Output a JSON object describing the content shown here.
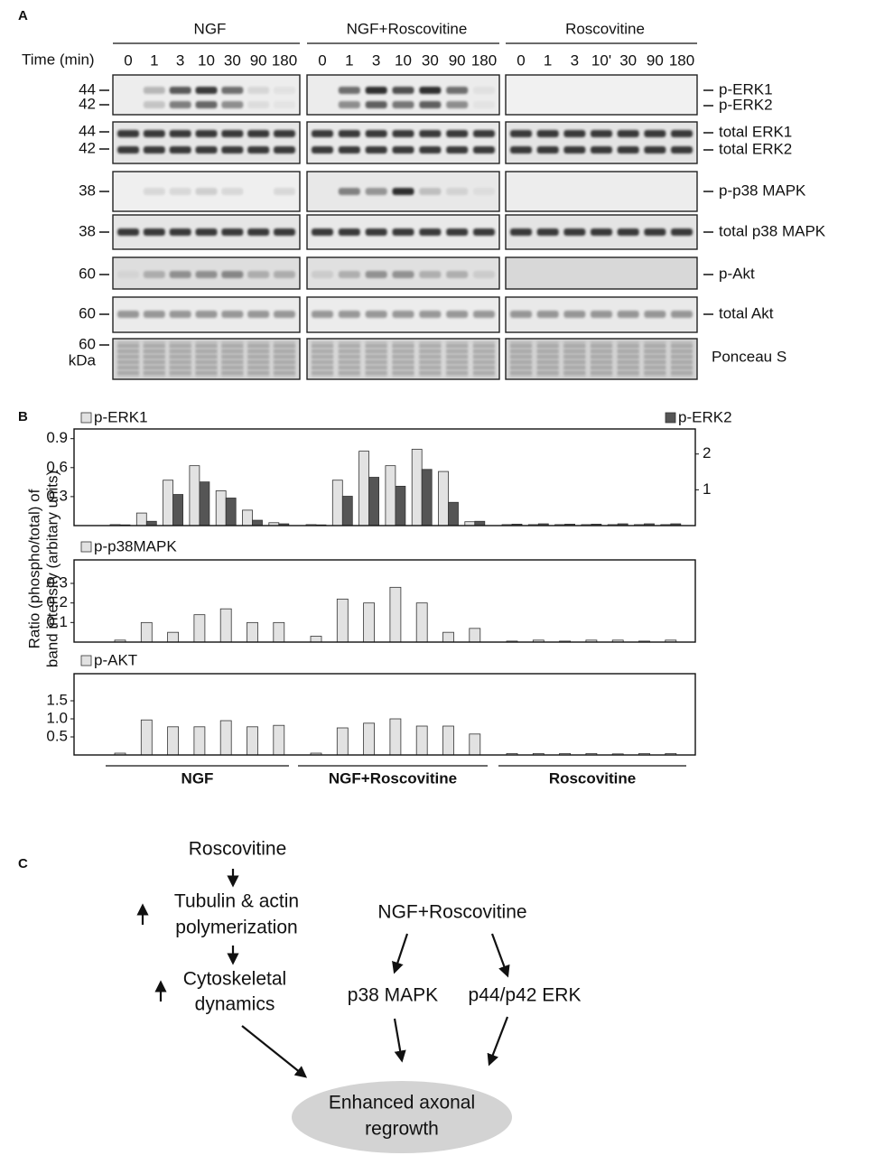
{
  "panel_a": {
    "label": "A",
    "time_label": "Time (min)",
    "groups": [
      {
        "name": "NGF",
        "times": [
          "0",
          "1",
          "3",
          "10",
          "30",
          "90",
          "180"
        ]
      },
      {
        "name": "NGF+Roscovitine",
        "times": [
          "0",
          "1",
          "3",
          "10",
          "30",
          "90",
          "180"
        ]
      },
      {
        "name": "Roscovitine",
        "times": [
          "0",
          "1",
          "3",
          "10'",
          "30",
          "90",
          "180"
        ]
      }
    ],
    "markers": [
      "44",
      "42",
      "44",
      "42",
      "38",
      "38",
      "60",
      "60",
      "60",
      "kDa"
    ],
    "proteins": [
      "p-ERK1",
      "p-ERK2",
      "total ERK1",
      "total ERK2",
      "p-p38 MAPK",
      "total p38 MAPK",
      "p-Akt",
      "total Akt",
      "Ponceau S"
    ]
  },
  "panel_b": {
    "label": "B",
    "y_label": [
      "Ratio (phospho/total) of",
      "band intensity (arbitary units)"
    ],
    "groups": [
      "NGF",
      "NGF+Roscovitine",
      "Roscovitine"
    ]
  },
  "chart_data": [
    {
      "type": "bar",
      "categories": [
        null,
        null,
        null,
        null,
        null,
        null,
        null,
        null,
        null,
        null,
        null,
        null,
        null,
        null,
        null,
        null,
        null,
        null,
        null,
        null,
        null
      ],
      "ylim": [
        0,
        1.0
      ],
      "yticks": [
        0.3,
        0.6,
        0.9
      ],
      "y2lim": [
        0,
        2.7
      ],
      "y2ticks": [
        1,
        2
      ],
      "series": [
        {
          "name": "p-ERK1",
          "color": "#e2e2e2",
          "values": [
            0.01,
            0.13,
            0.47,
            0.62,
            0.36,
            0.16,
            0.03,
            0.01,
            0.47,
            0.77,
            0.62,
            0.79,
            0.56,
            0.04,
            0.01,
            0.01,
            0.01,
            0.01,
            0.01,
            0.01,
            0.01
          ]
        },
        {
          "name": "p-ERK2",
          "color": "#555555",
          "axis": "y2",
          "values": [
            0.02,
            0.12,
            0.87,
            1.22,
            0.77,
            0.15,
            0.05,
            0.02,
            0.82,
            1.35,
            1.1,
            1.57,
            0.65,
            0.12,
            0.04,
            0.05,
            0.04,
            0.04,
            0.05,
            0.05,
            0.05
          ]
        }
      ]
    },
    {
      "type": "bar",
      "categories": [
        null,
        null,
        null,
        null,
        null,
        null,
        null,
        null,
        null,
        null,
        null,
        null,
        null,
        null,
        null,
        null,
        null,
        null,
        null,
        null,
        null
      ],
      "ylim": [
        0,
        0.42
      ],
      "yticks": [
        0.1,
        0.2,
        0.3
      ],
      "series": [
        {
          "name": "p-p38MAPK",
          "color": "#e2e2e2",
          "values": [
            0.01,
            0.1,
            0.05,
            0.14,
            0.17,
            0.1,
            0.1,
            0.03,
            0.22,
            0.2,
            0.28,
            0.2,
            0.05,
            0.07,
            0.005,
            0.01,
            0.005,
            0.01,
            0.01,
            0.005,
            0.01
          ]
        }
      ]
    },
    {
      "type": "bar",
      "categories": [
        null,
        null,
        null,
        null,
        null,
        null,
        null,
        null,
        null,
        null,
        null,
        null,
        null,
        null,
        null,
        null,
        null,
        null,
        null,
        null,
        null
      ],
      "ylim": [
        0,
        2.25
      ],
      "yticks": [
        0.5,
        {
          "value": 1,
          "label": "1.0"
        },
        1.5
      ],
      "series": [
        {
          "name": "p-AKT",
          "color": "#e2e2e2",
          "values": [
            0.05,
            0.97,
            0.78,
            0.78,
            0.95,
            0.78,
            0.82,
            0.05,
            0.75,
            0.88,
            1.0,
            0.8,
            0.8,
            0.58,
            0.04,
            0.04,
            0.04,
            0.04,
            0.03,
            0.04,
            0.04
          ]
        }
      ]
    }
  ],
  "panel_c": {
    "label": "C",
    "nodes": [
      {
        "lines": [
          "Roscovitine"
        ]
      },
      {
        "lines": [
          "Tubulin & actin",
          "polymerization"
        ]
      },
      {
        "lines": [
          "Cytoskeletal",
          "dynamics"
        ]
      },
      {
        "lines": [
          "NGF+Roscovitine"
        ]
      },
      {
        "lines": [
          "p38 MAPK"
        ]
      },
      {
        "lines": [
          "p44/p42 ERK"
        ]
      },
      {
        "lines": [
          "Enhanced axonal",
          "regrowth"
        ]
      }
    ]
  }
}
